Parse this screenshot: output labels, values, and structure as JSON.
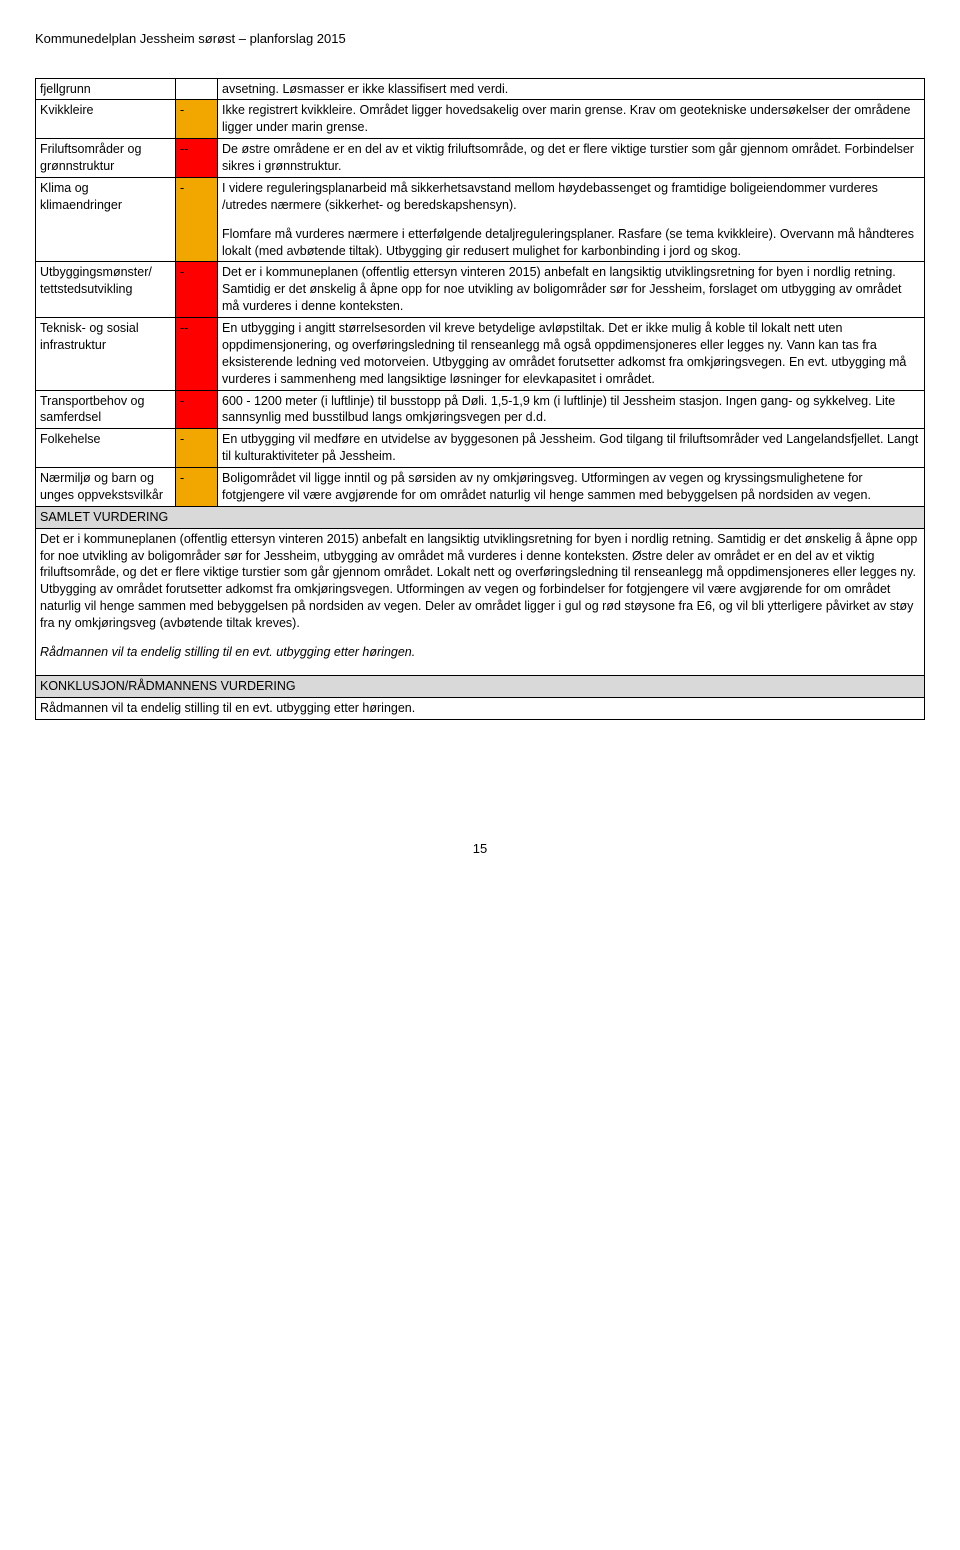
{
  "header_text": "Kommunedelplan Jessheim sørøst – planforslag 2015",
  "colors": {
    "orange": "#f2a600",
    "red": "#ff0000",
    "section_bg": "#d9d9d9"
  },
  "rows": [
    {
      "label": "fjellgrunn",
      "rating": "",
      "rating_bg": "none",
      "desc": "avsetning. Løsmasser er ikke klassifisert med verdi."
    },
    {
      "label": "Kvikkleire",
      "rating": "-",
      "rating_bg": "orange",
      "desc": "Ikke registrert kvikkleire. Området ligger hovedsakelig over marin grense. Krav om geotekniske undersøkelser der områdene ligger under marin grense."
    },
    {
      "label": "Friluftsområder og grønnstruktur",
      "rating": "--",
      "rating_bg": "red",
      "desc": "De østre områdene er en del av et viktig friluftsområde, og det er flere viktige turstier som går gjennom området. Forbindelser sikres i grønnstruktur."
    },
    {
      "label": "Klima og klimaendringer",
      "rating": "-",
      "rating_bg": "orange",
      "desc": "I videre reguleringsplanarbeid må sikkerhetsavstand mellom høydebassenget og framtidige boligeiendommer vurderes /utredes nærmere (sikkerhet- og beredskapshensyn).\n\nFlomfare må vurderes nærmere i etterfølgende detaljreguleringsplaner. Rasfare (se tema kvikkleire). Overvann må håndteres lokalt (med avbøtende tiltak). Utbygging gir redusert mulighet for karbonbinding i jord og skog."
    },
    {
      "label": "Utbyggingsmønster/ tettstedsutvikling",
      "rating": "-",
      "rating_bg": "red",
      "desc": "Det er i kommuneplanen (offentlig ettersyn vinteren 2015) anbefalt en langsiktig utviklingsretning for byen i nordlig retning. Samtidig er det ønskelig å åpne opp for noe utvikling av boligområder sør for Jessheim, forslaget om utbygging av området må vurderes i denne konteksten."
    },
    {
      "label": "Teknisk- og sosial infrastruktur",
      "rating": "--",
      "rating_bg": "red",
      "desc": "En utbygging i angitt størrelsesorden vil kreve betydelige avløpstiltak. Det er ikke mulig å koble til lokalt nett uten oppdimensjonering, og overføringsledning til renseanlegg må også oppdimensjoneres eller legges ny. Vann kan tas fra eksisterende ledning ved motorveien. Utbygging av området forutsetter adkomst fra omkjøringsvegen. En evt. utbygging må vurderes i sammenheng med langsiktige løsninger for elevkapasitet i området."
    },
    {
      "label": "Transportbehov og samferdsel",
      "rating": "-",
      "rating_bg": "red",
      "desc": "600 - 1200 meter (i luftlinje) til busstopp på Døli. 1,5-1,9 km (i luftlinje) til Jessheim stasjon. Ingen gang- og sykkelveg. Lite sannsynlig med busstilbud langs omkjøringsvegen per d.d."
    },
    {
      "label": "Folkehelse",
      "rating": "-",
      "rating_bg": "orange",
      "desc": "En utbygging vil medføre en utvidelse av byggesonen på Jessheim. God tilgang til friluftsområder ved Langelandsfjellet. Langt til kulturaktiviteter på Jessheim."
    },
    {
      "label": "Nærmiljø og barn og unges oppvekstsvilkår",
      "rating": "-",
      "rating_bg": "orange",
      "desc": "Boligområdet vil ligge inntil og på sørsiden av ny omkjøringsveg. Utformingen av vegen og kryssingsmulighetene for fotgjengere vil være avgjørende for om området naturlig vil henge sammen med bebyggelsen på nordsiden av vegen."
    }
  ],
  "section_samlet": {
    "title": "SAMLET VURDERING",
    "body": "Det er i kommuneplanen (offentlig ettersyn vinteren 2015) anbefalt en langsiktig utviklingsretning for byen i nordlig retning. Samtidig er det ønskelig å åpne opp for noe utvikling av boligområder sør for Jessheim, utbygging av området må vurderes i denne konteksten.  Østre deler av området er en del av et viktig friluftsområde, og det er flere viktige turstier som går gjennom området. Lokalt nett og overføringsledning til renseanlegg må oppdimensjoneres eller legges ny. Utbygging av området forutsetter adkomst fra omkjøringsvegen. Utformingen av vegen og forbindelser for fotgjengere vil være avgjørende for om området naturlig vil henge sammen med bebyggelsen på nordsiden av vegen. Deler av området ligger i gul og rød støysone fra E6, og vil bli ytterligere påvirket av støy fra ny omkjøringsveg (avbøtende tiltak kreves).",
    "italic_line": "Rådmannen vil ta endelig stilling til en evt. utbygging etter høringen."
  },
  "section_konklusjon": {
    "title": "KONKLUSJON/RÅDMANNENS VURDERING",
    "body": "Rådmannen vil ta endelig stilling til en evt. utbygging etter høringen."
  },
  "page_number": "15"
}
